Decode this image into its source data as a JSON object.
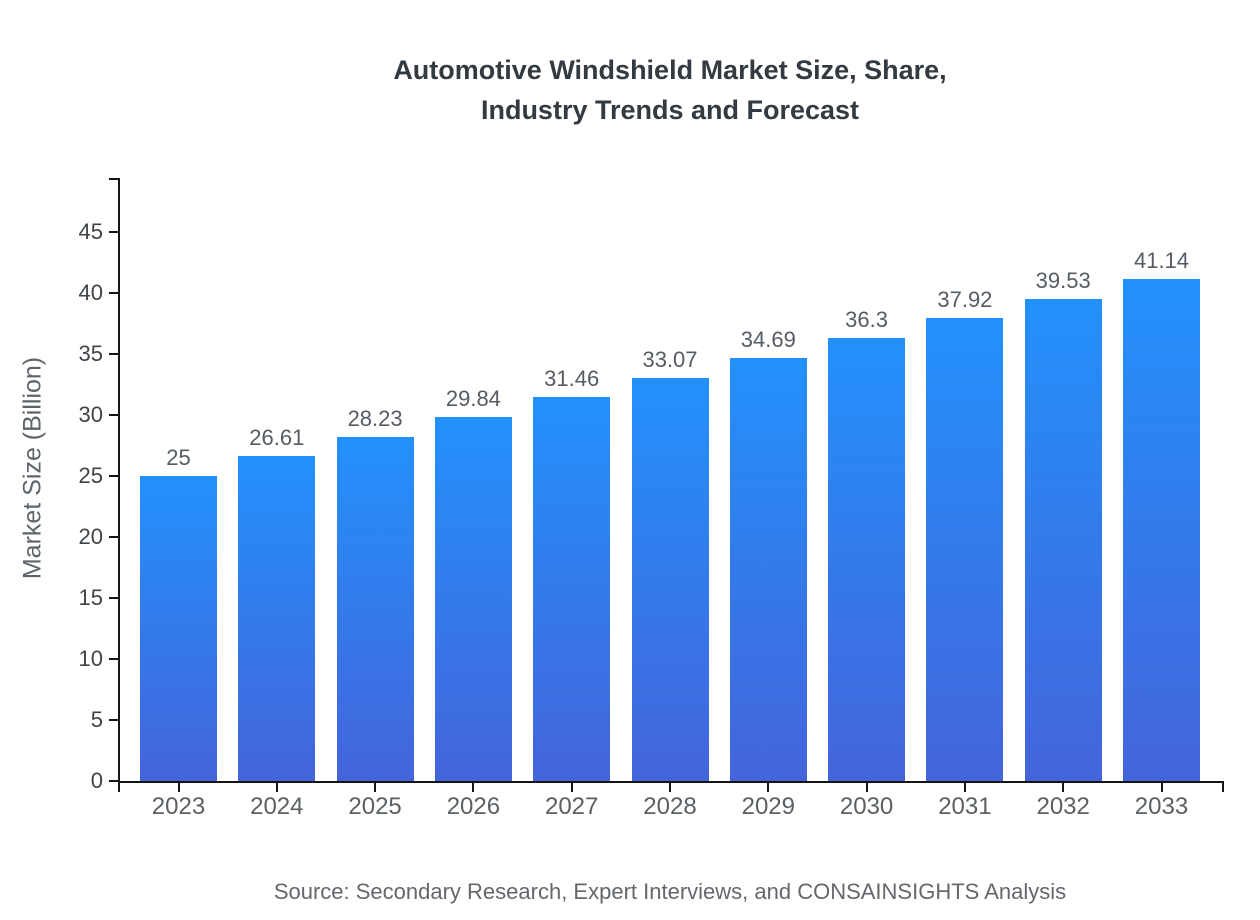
{
  "title": {
    "line1": "Automotive Windshield Market Size, Share,",
    "line2": "Industry Trends and Forecast"
  },
  "source": "Source: Secondary Research, Expert Interviews, and CONSAINSIGHTS Analysis",
  "chart_data": {
    "type": "bar",
    "title": "Automotive Windshield Market Size, Share, Industry Trends and Forecast",
    "categories": [
      "2023",
      "2024",
      "2025",
      "2026",
      "2027",
      "2028",
      "2029",
      "2030",
      "2031",
      "2032",
      "2033"
    ],
    "values": [
      25,
      26.61,
      28.23,
      29.84,
      31.46,
      33.07,
      34.69,
      36.3,
      37.92,
      39.53,
      41.14
    ],
    "xlabel": "",
    "ylabel": "Market Size (Billion)",
    "ylim": [
      0,
      49.4
    ],
    "yticks": [
      0,
      5,
      10,
      15,
      20,
      25,
      30,
      35,
      40,
      45
    ],
    "grid": false,
    "legend": "none",
    "bar_color_top": "#2391fb",
    "bar_color_bottom": "#4464db",
    "axis_color": "#151515"
  }
}
